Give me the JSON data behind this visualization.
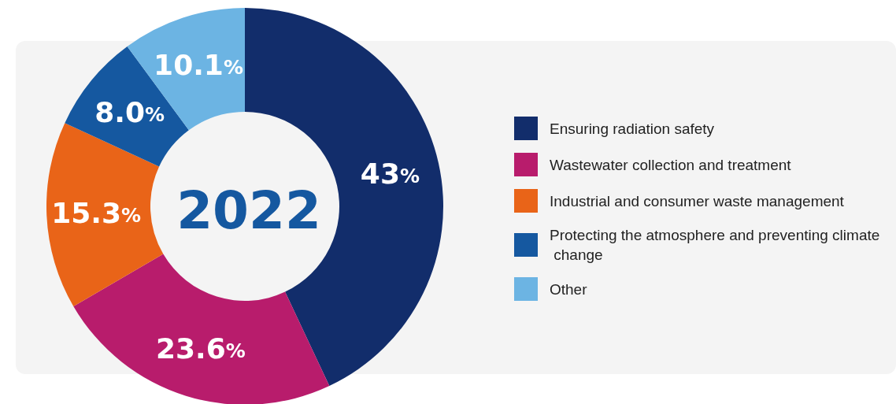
{
  "chart_data": {
    "type": "donut",
    "title": "2022",
    "categories": [
      "Ensuring radiation safety",
      "Wastewater collection and treatment",
      "Industrial and consumer waste management",
      "Protecting the atmosphere and preventing climate change",
      "Other"
    ],
    "values": [
      43,
      23.6,
      15.3,
      8.0,
      10.1
    ],
    "value_labels": [
      "43%",
      "23.6%",
      "15.3%",
      "8.0%",
      "10.1%"
    ],
    "colors": [
      "#122d6b",
      "#b81c6c",
      "#e96418",
      "#1558a0",
      "#6cb4e3"
    ],
    "legend": "right"
  }
}
